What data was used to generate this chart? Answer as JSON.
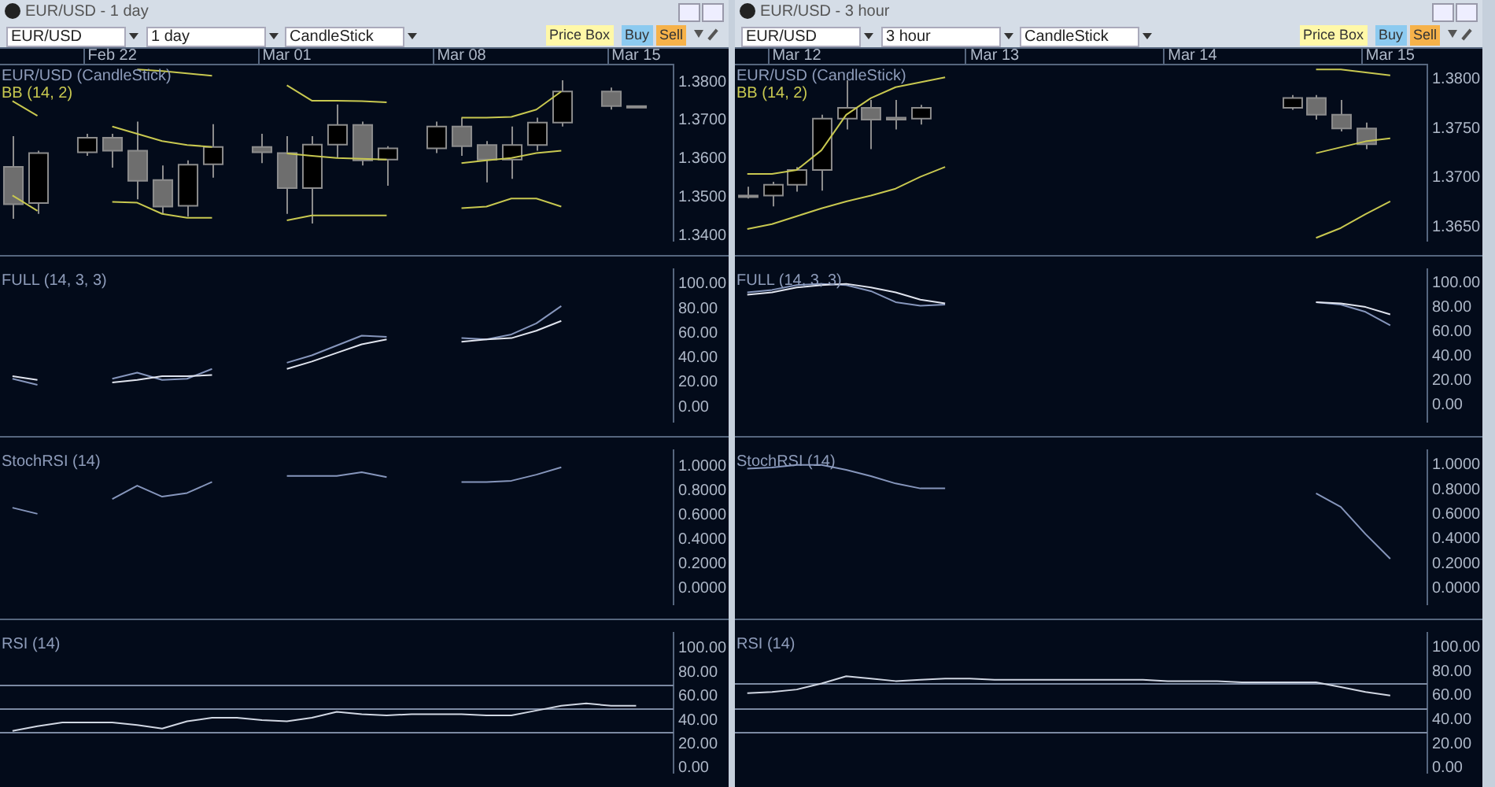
{
  "chart_data": [
    {
      "type": "candlestick",
      "title": "EUR/USD (CandleStick)",
      "subtitle": "BB (14, 2)",
      "annotations": [
        "EUR/USD - 1 day",
        "EUR/USD",
        "1 day",
        "CandleStick",
        "Price Box",
        "Buy",
        "Sell"
      ],
      "categories": [
        null,
        null,
        null,
        null,
        "Feb 22",
        null,
        null,
        null,
        null,
        null,
        null,
        "Mar 01",
        null,
        null,
        null,
        null,
        null,
        null,
        "Mar 08",
        null,
        null,
        null,
        null,
        null,
        null,
        "Mar 15",
        null
      ],
      "ohlc": [
        [
          1.3579,
          1.3659,
          1.3444,
          1.3482
        ],
        [
          1.3485,
          1.3621,
          1.3457,
          1.3615
        ],
        null,
        [
          1.3617,
          1.3665,
          1.3608,
          1.3655
        ],
        [
          1.3655,
          1.3665,
          1.3577,
          1.3621
        ],
        [
          1.3621,
          1.3697,
          1.3495,
          1.3543
        ],
        [
          1.3545,
          1.3583,
          1.3457,
          1.3476
        ],
        [
          1.3478,
          1.3596,
          1.345,
          1.3585
        ],
        [
          1.3586,
          1.369,
          1.3551,
          1.3631
        ],
        null,
        [
          1.3631,
          1.3665,
          1.3589,
          1.3617
        ],
        [
          1.3615,
          1.3659,
          1.3457,
          1.3524
        ],
        [
          1.3524,
          1.3659,
          1.3432,
          1.3637
        ],
        [
          1.3637,
          1.3741,
          1.3602,
          1.3688
        ],
        [
          1.3688,
          1.3697,
          1.3583,
          1.3596
        ],
        [
          1.3598,
          1.3633,
          1.353,
          1.3627
        ],
        null,
        [
          1.3627,
          1.3697,
          1.3615,
          1.3684
        ],
        [
          1.3684,
          1.3707,
          1.3608,
          1.3633
        ],
        [
          1.3636,
          1.3646,
          1.3539,
          1.3598
        ],
        [
          1.3598,
          1.3684,
          1.3548,
          1.3636
        ],
        [
          1.3636,
          1.3707,
          1.3621,
          1.3694
        ],
        [
          1.3694,
          1.3804,
          1.3684,
          1.3775
        ],
        null,
        [
          1.3775,
          1.3785,
          1.3728,
          1.3737
        ],
        [
          1.3737,
          1.3737,
          1.3737,
          1.3737
        ],
        null
      ],
      "series": [
        {
          "type": "line",
          "color": "#c8c850",
          "values": [
            1.375,
            1.3712,
            null,
            null,
            null,
            1.3832,
            1.3828,
            1.3822,
            1.3816,
            null,
            null,
            1.3791,
            1.3751,
            1.3751,
            1.375,
            1.3747,
            null,
            null,
            1.3707,
            1.3707,
            1.3709,
            1.3728,
            1.3775,
            null,
            null,
            null,
            null
          ]
        },
        {
          "type": "line",
          "color": "#c8c850",
          "values": [
            1.3505,
            1.3465,
            null,
            null,
            1.3684,
            1.3665,
            1.3646,
            1.3636,
            1.3631,
            null,
            null,
            1.3614,
            1.3608,
            1.3602,
            1.36,
            1.3598,
            null,
            null,
            1.3589,
            1.3596,
            1.3602,
            1.3615,
            1.3621,
            null,
            null,
            null,
            null
          ]
        },
        {
          "type": "line",
          "color": "#c8c850",
          "values": [
            null,
            null,
            null,
            null,
            1.3488,
            1.3486,
            1.3457,
            1.3447,
            1.3447,
            null,
            null,
            1.344,
            1.3453,
            1.3453,
            1.3453,
            1.3453,
            null,
            null,
            1.3472,
            1.3476,
            1.3497,
            1.3497,
            1.3476,
            null,
            null,
            null,
            null
          ]
        }
      ],
      "ylim": [
        1.3387,
        1.3845
      ],
      "yticks": [
        {
          "value": 1.34,
          "label": "1.3400"
        },
        {
          "value": 1.35,
          "label": "1.3500"
        },
        {
          "value": 1.36,
          "label": "1.3600"
        },
        {
          "value": 1.37,
          "label": "1.3700"
        },
        {
          "value": 1.38,
          "label": "1.3800"
        }
      ]
    },
    {
      "type": "line",
      "title": "FULL (14, 3, 3)",
      "tick_labels": "y",
      "categories": [
        null,
        null,
        null,
        null,
        null,
        null,
        null,
        null,
        null,
        null,
        null,
        null,
        null,
        null,
        null,
        null,
        null,
        null,
        null,
        null,
        null,
        null,
        null,
        null,
        null,
        null,
        null
      ],
      "ylim": [
        -12,
        112
      ],
      "yticks": [
        {
          "value": 0,
          "label": "0.00"
        },
        {
          "value": 20,
          "label": "20.00"
        },
        {
          "value": 40,
          "label": "40.00"
        },
        {
          "value": 60,
          "label": "60.00"
        },
        {
          "value": 80,
          "label": "80.00"
        },
        {
          "value": 100,
          "label": "100.00"
        }
      ],
      "series": [
        {
          "color": "#e0e4ee",
          "values": [
            25,
            22,
            null,
            null,
            20,
            22,
            25,
            25,
            26,
            null,
            null,
            31,
            37,
            44,
            51,
            55,
            null,
            null,
            53,
            55,
            56,
            62,
            70,
            null,
            null,
            null,
            null
          ]
        },
        {
          "color": "#8696bc",
          "values": [
            23,
            18,
            null,
            null,
            23,
            28,
            22,
            23,
            31,
            null,
            null,
            36,
            42,
            50,
            58,
            57,
            null,
            null,
            56,
            55,
            59,
            68,
            82,
            null,
            null,
            null,
            null
          ]
        }
      ]
    },
    {
      "type": "line",
      "title": "StochRSI (14)",
      "tick_labels": "y",
      "categories": [
        null,
        null,
        null,
        null,
        null,
        null,
        null,
        null,
        null,
        null,
        null,
        null,
        null,
        null,
        null,
        null,
        null,
        null,
        null,
        null,
        null,
        null,
        null,
        null,
        null,
        null,
        null
      ],
      "ylim": [
        -0.13,
        1.13
      ],
      "yticks": [
        {
          "value": 0,
          "label": "0.0000"
        },
        {
          "value": 0.2,
          "label": "0.2000"
        },
        {
          "value": 0.4,
          "label": "0.4000"
        },
        {
          "value": 0.6,
          "label": "0.6000"
        },
        {
          "value": 0.8,
          "label": "0.8000"
        },
        {
          "value": 1,
          "label": "1.0000"
        }
      ],
      "series": [
        {
          "color": "#8696bc",
          "values": [
            0.66,
            0.61,
            null,
            null,
            0.73,
            0.84,
            0.75,
            0.78,
            0.87,
            null,
            null,
            0.92,
            0.92,
            0.92,
            0.95,
            0.91,
            null,
            null,
            0.87,
            0.87,
            0.88,
            0.93,
            0.99,
            null,
            null,
            null,
            null
          ]
        }
      ]
    },
    {
      "type": "line",
      "title": "RSI (14)",
      "tick_labels": "y",
      "categories": [
        null,
        null,
        null,
        null,
        null,
        null,
        null,
        null,
        null,
        null,
        null,
        null,
        null,
        null,
        null,
        null,
        null,
        null,
        null,
        null,
        null,
        null,
        null,
        null,
        null,
        null,
        null
      ],
      "ylim": [
        -4,
        113
      ],
      "yticks": [
        {
          "value": 0,
          "label": "0.00"
        },
        {
          "value": 20,
          "label": "20.00"
        },
        {
          "value": 40,
          "label": "40.00"
        },
        {
          "value": 60,
          "label": "60.00"
        },
        {
          "value": 80,
          "label": "80.00"
        },
        {
          "value": 100,
          "label": "100.00"
        }
      ],
      "ref_lines": [
        {
          "axis": "y",
          "value": 70,
          "color": "#7c8aa2"
        },
        {
          "axis": "y",
          "value": 50,
          "color": "#7c8aa2"
        },
        {
          "axis": "y",
          "value": 30,
          "color": "#7c8aa2"
        }
      ],
      "series": [
        {
          "color": "#d0d6e2",
          "values": [
            31,
            35,
            38,
            38,
            38,
            36,
            33,
            39,
            42,
            42,
            40,
            39,
            42,
            47,
            45,
            44,
            45,
            45,
            45,
            44,
            44,
            48,
            52,
            54,
            52,
            52,
            null
          ]
        }
      ]
    },
    {
      "type": "candlestick",
      "title": "EUR/USD (CandleStick)",
      "subtitle": "BB (14, 2)",
      "annotations": [
        "EUR/USD - 3 hour",
        "EUR/USD",
        "3 hour",
        "CandleStick",
        "Price Box",
        "Buy",
        "Sell"
      ],
      "categories": [
        null,
        null,
        "Mar 12",
        null,
        null,
        null,
        null,
        null,
        null,
        null,
        "Mar 13",
        null,
        null,
        null,
        null,
        null,
        null,
        null,
        "Mar 14",
        null,
        null,
        null,
        null,
        null,
        null,
        null,
        "Mar 15",
        null
      ],
      "ohlc": [
        [
          1.3682,
          1.3691,
          1.3679,
          1.3682
        ],
        [
          1.3682,
          1.3696,
          1.3671,
          1.3693
        ],
        [
          1.3693,
          1.3711,
          1.3686,
          1.3708
        ],
        [
          1.3708,
          1.3764,
          1.3687,
          1.376
        ],
        [
          1.376,
          1.3799,
          1.3749,
          1.3771
        ],
        [
          1.3771,
          1.3779,
          1.3729,
          1.3759
        ],
        [
          1.3761,
          1.3779,
          1.3749,
          1.3759
        ],
        [
          1.376,
          1.3774,
          1.3754,
          1.3771
        ],
        null,
        null,
        null,
        null,
        null,
        null,
        null,
        null,
        null,
        null,
        null,
        null,
        null,
        null,
        [
          1.3771,
          1.3784,
          1.3769,
          1.3781
        ],
        [
          1.3781,
          1.3784,
          1.3759,
          1.3764
        ],
        [
          1.3764,
          1.3779,
          1.3747,
          1.375
        ],
        [
          1.375,
          1.3756,
          1.3729,
          1.3734
        ],
        null,
        null
      ],
      "series": [
        {
          "type": "line",
          "color": "#c8c850",
          "values": [
            1.3704,
            1.3704,
            1.3708,
            1.3728,
            1.3764,
            1.3781,
            1.3792,
            1.3797,
            1.3802,
            null,
            null,
            null,
            null,
            null,
            null,
            null,
            null,
            null,
            null,
            null,
            null,
            null,
            null,
            1.381,
            1.381,
            1.3807,
            1.3804,
            null
          ]
        },
        {
          "type": "line",
          "color": "#c8c850",
          "values": [
            1.3648,
            1.3653,
            1.3661,
            1.3669,
            1.3676,
            1.3682,
            1.3689,
            1.3701,
            1.3711,
            null,
            null,
            null,
            null,
            null,
            null,
            null,
            null,
            null,
            null,
            null,
            null,
            null,
            null,
            1.3725,
            1.3731,
            1.3737,
            1.374,
            null
          ]
        },
        {
          "type": "line",
          "color": "#c8c850",
          "values": [
            null,
            null,
            null,
            null,
            null,
            null,
            null,
            null,
            null,
            null,
            null,
            null,
            null,
            null,
            null,
            null,
            null,
            null,
            null,
            null,
            null,
            null,
            null,
            1.3639,
            1.3649,
            1.3663,
            1.3676,
            null
          ]
        }
      ],
      "ylim": [
        1.3636,
        1.3815
      ],
      "yticks": [
        {
          "value": 1.365,
          "label": "1.3650"
        },
        {
          "value": 1.37,
          "label": "1.3700"
        },
        {
          "value": 1.375,
          "label": "1.3750"
        },
        {
          "value": 1.38,
          "label": "1.3800"
        }
      ]
    },
    {
      "type": "line",
      "title": "FULL (14, 3, 3)",
      "tick_labels": "y",
      "categories": [
        null,
        null,
        null,
        null,
        null,
        null,
        null,
        null,
        null,
        null,
        null,
        null,
        null,
        null,
        null,
        null,
        null,
        null,
        null,
        null,
        null,
        null,
        null,
        null,
        null,
        null,
        null,
        null
      ],
      "ylim": [
        -14,
        111
      ],
      "yticks": [
        {
          "value": 0,
          "label": "0.00"
        },
        {
          "value": 20,
          "label": "20.00"
        },
        {
          "value": 40,
          "label": "40.00"
        },
        {
          "value": 60,
          "label": "60.00"
        },
        {
          "value": 80,
          "label": "80.00"
        },
        {
          "value": 100,
          "label": "100.00"
        }
      ],
      "series": [
        {
          "color": "#e0e4ee",
          "values": [
            90,
            92,
            96,
            98,
            99,
            96,
            92,
            86,
            83,
            null,
            null,
            null,
            null,
            null,
            null,
            null,
            null,
            null,
            null,
            null,
            null,
            null,
            null,
            84,
            83,
            80,
            74,
            null
          ]
        },
        {
          "color": "#8696bc",
          "values": [
            92,
            94,
            98,
            99,
            98,
            93,
            84,
            81,
            82,
            null,
            null,
            null,
            null,
            null,
            null,
            null,
            null,
            null,
            null,
            null,
            null,
            null,
            null,
            84,
            82,
            76,
            65,
            null
          ]
        }
      ]
    },
    {
      "type": "line",
      "title": "StochRSI (14)",
      "tick_labels": "y",
      "categories": [
        null,
        null,
        null,
        null,
        null,
        null,
        null,
        null,
        null,
        null,
        null,
        null,
        null,
        null,
        null,
        null,
        null,
        null,
        null,
        null,
        null,
        null,
        null,
        null,
        null,
        null,
        null,
        null
      ],
      "ylim": [
        -0.13,
        1.12
      ],
      "yticks": [
        {
          "value": 0,
          "label": "0.0000"
        },
        {
          "value": 0.2,
          "label": "0.2000"
        },
        {
          "value": 0.4,
          "label": "0.4000"
        },
        {
          "value": 0.6,
          "label": "0.6000"
        },
        {
          "value": 0.8,
          "label": "0.8000"
        },
        {
          "value": 1,
          "label": "1.0000"
        }
      ],
      "series": [
        {
          "color": "#8696bc",
          "values": [
            0.97,
            0.98,
            1.0,
            1.0,
            0.96,
            0.91,
            0.85,
            0.81,
            0.81,
            null,
            null,
            null,
            null,
            null,
            null,
            null,
            null,
            null,
            null,
            null,
            null,
            null,
            null,
            0.77,
            0.66,
            0.44,
            0.24,
            null
          ]
        }
      ]
    },
    {
      "type": "line",
      "title": "RSI (14)",
      "tick_labels": "y",
      "categories": [
        null,
        null,
        null,
        null,
        null,
        null,
        null,
        null,
        null,
        null,
        null,
        null,
        null,
        null,
        null,
        null,
        null,
        null,
        null,
        null,
        null,
        null,
        null,
        null,
        null,
        null,
        null,
        null
      ],
      "ylim": [
        -4,
        112
      ],
      "yticks": [
        {
          "value": 0,
          "label": "0.00"
        },
        {
          "value": 20,
          "label": "20.00"
        },
        {
          "value": 40,
          "label": "40.00"
        },
        {
          "value": 60,
          "label": "60.00"
        },
        {
          "value": 80,
          "label": "80.00"
        },
        {
          "value": 100,
          "label": "100.00"
        }
      ],
      "ref_lines": [
        {
          "axis": "y",
          "value": 70,
          "color": "#7c8aa2"
        },
        {
          "axis": "y",
          "value": 50,
          "color": "#7c8aa2"
        },
        {
          "axis": "y",
          "value": 30,
          "color": "#7c8aa2"
        }
      ],
      "series": [
        {
          "color": "#d0d6e2",
          "values": [
            62,
            63,
            65,
            70,
            76,
            74,
            72,
            73,
            74,
            74,
            73,
            73,
            73,
            73,
            73,
            73,
            73,
            72,
            72,
            72,
            71,
            71,
            71,
            71,
            67,
            63,
            60,
            null
          ]
        }
      ]
    }
  ]
}
